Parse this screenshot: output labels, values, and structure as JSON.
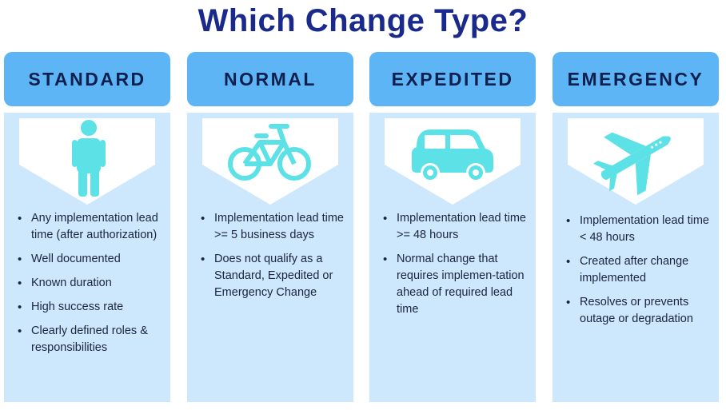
{
  "title": "Which Change Type?",
  "colors": {
    "title": "#1a2a8c",
    "header_bg": "#5db5f5",
    "body_bg": "#cde7fd",
    "icon": "#5ce1e6"
  },
  "columns": [
    {
      "name": "STANDARD",
      "icon": "person-icon",
      "bullets": [
        "Any implementation lead time (after authorization)",
        "Well documented",
        "Known duration",
        "High success rate",
        "Clearly defined roles & responsibilities"
      ]
    },
    {
      "name": "NORMAL",
      "icon": "bicycle-icon",
      "bullets": [
        "Implementation lead time >= 5 business days",
        "Does not qualify as a Standard, Expedited or Emergency Change"
      ]
    },
    {
      "name": "EXPEDITED",
      "icon": "car-icon",
      "bullets": [
        "Implementation lead time >= 48 hours",
        "Normal change that requires implemen-tation ahead of required lead time"
      ]
    },
    {
      "name": "EMERGENCY",
      "icon": "airplane-icon",
      "bullets": [
        "Implementation lead time < 48 hours",
        "Created after change implemented",
        "Resolves or prevents outage or degradation"
      ]
    }
  ]
}
